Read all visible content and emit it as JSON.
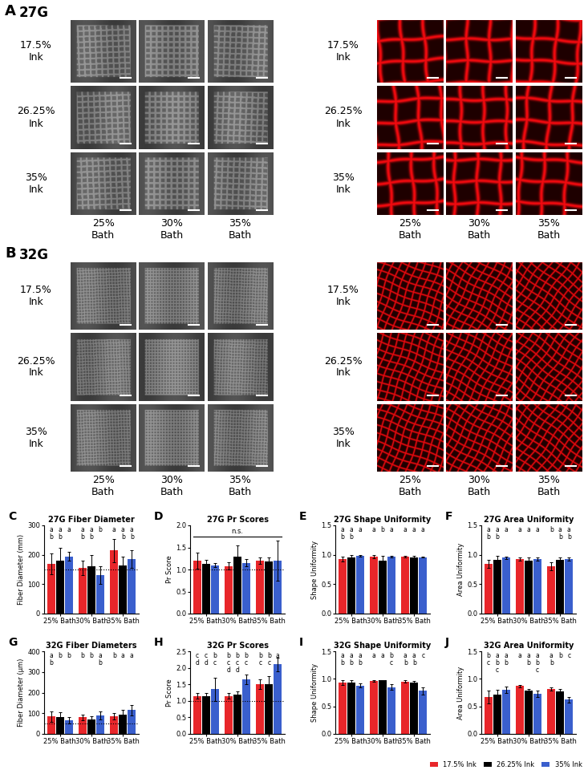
{
  "image_panels": [
    {
      "label": "A",
      "needle": "27G",
      "rows": [
        "17.5%\nInk",
        "26.25%\nInk",
        "35%\nInk"
      ],
      "columns": [
        "25%\nBath",
        "30%\nBath",
        "35%\nBath"
      ]
    },
    {
      "label": "B",
      "needle": "32G",
      "rows": [
        "17.5%\nInk",
        "26.25%\nInk",
        "35%\nInk"
      ],
      "columns": [
        "25%\nBath",
        "30%\nBath",
        "35%\nBath"
      ]
    }
  ],
  "chart_data": [
    {
      "type": "bar",
      "panel": "C",
      "title": "27G Fiber Diameter",
      "y_label": "Fiber Diameter (mm)",
      "categories": [
        "25% Bath",
        "30% Bath",
        "35% Bath"
      ],
      "ylim": [
        0,
        300
      ],
      "yticks": [
        0,
        100,
        200,
        300
      ],
      "reference_line": 150,
      "series": [
        {
          "name": "17.5% Ink",
          "color": "#e8262a",
          "values": [
            170,
            155,
            215
          ],
          "errors": [
            35,
            25,
            40
          ],
          "letters": [
            "a\nb",
            "a\nb",
            "a"
          ]
        },
        {
          "name": "26.25% Ink",
          "color": "#000000",
          "values": [
            180,
            160,
            165
          ],
          "errors": [
            45,
            40,
            30
          ],
          "letters": [
            "a\nb",
            "a\nb",
            "a\nb"
          ]
        },
        {
          "name": "35% Ink",
          "color": "#3a5fcd",
          "values": [
            195,
            130,
            185
          ],
          "errors": [
            15,
            30,
            30
          ],
          "letters": [
            "a",
            "b",
            "a\nb"
          ]
        }
      ]
    },
    {
      "type": "bar",
      "panel": "D",
      "title": "27G Pr Scores",
      "y_label": "Pr Score",
      "categories": [
        "25% Bath",
        "30% Bath",
        "35% Bath"
      ],
      "ylim": [
        0,
        2.0
      ],
      "yticks": [
        {
          "value": 0,
          "label": "0.0"
        },
        0.5,
        {
          "value": 1,
          "label": "1.0"
        },
        1.5,
        {
          "value": 2,
          "label": "2.0"
        }
      ],
      "reference_line": 1.0,
      "significance": "n.s.",
      "series": [
        {
          "name": "17.5% Ink",
          "color": "#e8262a",
          "values": [
            1.2,
            1.08,
            1.2
          ],
          "errors": [
            0.18,
            0.08,
            0.08
          ]
        },
        {
          "name": "26.25% Ink",
          "color": "#000000",
          "values": [
            1.12,
            1.3,
            1.18
          ],
          "errors": [
            0.1,
            0.25,
            0.1
          ]
        },
        {
          "name": "35% Ink",
          "color": "#3a5fcd",
          "values": [
            1.1,
            1.15,
            1.2
          ],
          "errors": [
            0.05,
            0.08,
            0.45
          ]
        }
      ]
    },
    {
      "type": "bar",
      "panel": "E",
      "title": "27G Shape Uniformity",
      "y_label": "Shape Uniformity",
      "categories": [
        "25% Bath",
        "30% Bath",
        "35% Bath"
      ],
      "ylim": [
        0,
        1.5
      ],
      "yticks": [
        {
          "value": 0,
          "label": "0.0"
        },
        0.5,
        {
          "value": 1,
          "label": "1.0"
        },
        1.5
      ],
      "series": [
        {
          "name": "17.5% Ink",
          "color": "#e8262a",
          "values": [
            0.93,
            0.97,
            0.97
          ],
          "errors": [
            0.04,
            0.03,
            0.01
          ],
          "letters": [
            "a\nb",
            "a",
            "a"
          ]
        },
        {
          "name": "26.25% Ink",
          "color": "#000000",
          "values": [
            0.95,
            0.9,
            0.96
          ],
          "errors": [
            0.04,
            0.08,
            0.02
          ],
          "letters": [
            "a\nb",
            "b",
            "a"
          ]
        },
        {
          "name": "35% Ink",
          "color": "#3a5fcd",
          "values": [
            0.98,
            0.97,
            0.96
          ],
          "errors": [
            0.01,
            0.01,
            0.01
          ],
          "letters": [
            "a",
            "a",
            "a"
          ]
        }
      ]
    },
    {
      "type": "bar",
      "panel": "F",
      "title": "27G Area Uniformity",
      "y_label": "Area Uniformity",
      "categories": [
        "25% Bath",
        "30% Bath",
        "35% Bath"
      ],
      "ylim": [
        0,
        1.5
      ],
      "yticks": [
        {
          "value": 0,
          "label": "0.0"
        },
        0.5,
        {
          "value": 1,
          "label": "1.0"
        },
        1.5
      ],
      "series": [
        {
          "name": "17.5% Ink",
          "color": "#e8262a",
          "values": [
            0.85,
            0.93,
            0.8
          ],
          "errors": [
            0.07,
            0.03,
            0.07
          ],
          "letters": [
            "a\nb",
            "a",
            "b"
          ]
        },
        {
          "name": "26.25% Ink",
          "color": "#000000",
          "values": [
            0.92,
            0.9,
            0.92
          ],
          "errors": [
            0.06,
            0.05,
            0.03
          ],
          "letters": [
            "a\nb",
            "a",
            "a\nb"
          ]
        },
        {
          "name": "35% Ink",
          "color": "#3a5fcd",
          "values": [
            0.95,
            0.93,
            0.93
          ],
          "errors": [
            0.02,
            0.03,
            0.03
          ],
          "letters": [
            "a",
            "a",
            "a\nb"
          ]
        }
      ]
    },
    {
      "type": "bar",
      "panel": "G",
      "title": "32G Fiber Diameters",
      "y_label": "Fiber Diameter (μm)",
      "categories": [
        "25% Bath",
        "30% Bath",
        "35% Bath"
      ],
      "ylim": [
        0,
        400
      ],
      "yticks": [
        0,
        100,
        200,
        300,
        400
      ],
      "reference_line": 50,
      "series": [
        {
          "name": "17.5% Ink",
          "color": "#e8262a",
          "values": [
            85,
            80,
            85
          ],
          "errors": [
            25,
            15,
            15
          ],
          "letters": [
            "a\nb",
            "b",
            "b"
          ]
        },
        {
          "name": "26.25% Ink",
          "color": "#000000",
          "values": [
            80,
            70,
            95
          ],
          "errors": [
            25,
            15,
            20
          ],
          "letters": [
            "b",
            "b",
            "a"
          ]
        },
        {
          "name": "35% Ink",
          "color": "#3a5fcd",
          "values": [
            65,
            90,
            115
          ],
          "errors": [
            15,
            20,
            25
          ],
          "letters": [
            "b",
            "a\nb",
            "a"
          ]
        }
      ]
    },
    {
      "type": "bar",
      "panel": "H",
      "title": "32G Pr Scores",
      "y_label": "Pr Score",
      "categories": [
        "25% Bath",
        "30% Bath",
        "35% Bath"
      ],
      "ylim": [
        0,
        2.5
      ],
      "yticks": [
        {
          "value": 0,
          "label": "0.0"
        },
        0.5,
        {
          "value": 1,
          "label": "1.0"
        },
        1.5,
        {
          "value": 2,
          "label": "2.0"
        },
        2.5
      ],
      "reference_line": 1.0,
      "series": [
        {
          "name": "17.5% Ink",
          "color": "#e8262a",
          "values": [
            1.15,
            1.15,
            1.5
          ],
          "errors": [
            0.08,
            0.08,
            0.15
          ],
          "letters": [
            "c\nd",
            "b\nc\nd",
            "b\nc"
          ]
        },
        {
          "name": "26.25% Ink",
          "color": "#000000",
          "values": [
            1.15,
            1.2,
            1.5
          ],
          "errors": [
            0.08,
            0.08,
            0.25
          ],
          "letters": [
            "c\nd",
            "b\nc\nd",
            "b\nc"
          ]
        },
        {
          "name": "35% Ink",
          "color": "#3a5fcd",
          "values": [
            1.35,
            1.65,
            2.1
          ],
          "errors": [
            0.35,
            0.15,
            0.2
          ],
          "letters": [
            "b\nc",
            "b\nc",
            "a"
          ]
        }
      ]
    },
    {
      "type": "bar",
      "panel": "I",
      "title": "32G Shape Uniformity",
      "y_label": "Shape Uniformity",
      "categories": [
        "25% Bath",
        "30% Bath",
        "35% Bath"
      ],
      "ylim": [
        0,
        1.5
      ],
      "yticks": [
        {
          "value": 0,
          "label": "0.0"
        },
        0.5,
        {
          "value": 1,
          "label": "1.0"
        },
        1.5
      ],
      "series": [
        {
          "name": "17.5% Ink",
          "color": "#e8262a",
          "values": [
            0.93,
            0.96,
            0.95
          ],
          "errors": [
            0.04,
            0.01,
            0.02
          ],
          "letters": [
            "a\nb",
            "a",
            "a\nb"
          ]
        },
        {
          "name": "26.25% Ink",
          "color": "#000000",
          "values": [
            0.93,
            0.97,
            0.93
          ],
          "errors": [
            0.04,
            0.01,
            0.03
          ],
          "letters": [
            "a\nb",
            "a",
            "a\nb"
          ]
        },
        {
          "name": "35% Ink",
          "color": "#3a5fcd",
          "values": [
            0.88,
            0.85,
            0.78
          ],
          "errors": [
            0.04,
            0.05,
            0.06
          ],
          "letters": [
            "a\nb",
            "b\nc",
            "c"
          ]
        }
      ]
    },
    {
      "type": "bar",
      "panel": "J",
      "title": "32G Area Uniformity",
      "y_label": "Area Uniformity",
      "categories": [
        "25% Bath",
        "30% Bath",
        "35% Bath"
      ],
      "ylim": [
        0,
        1.5
      ],
      "yticks": [
        {
          "value": 0,
          "label": "0.0"
        },
        0.5,
        {
          "value": 1,
          "label": "1.0"
        },
        1.5
      ],
      "legend": "lower right",
      "series": [
        {
          "name": "17.5% Ink",
          "color": "#e8262a",
          "values": [
            0.67,
            0.87,
            0.82
          ],
          "errors": [
            0.12,
            0.02,
            0.03
          ],
          "letters": [
            "b\nc",
            "a",
            "a\nb"
          ]
        },
        {
          "name": "26.25% Ink",
          "color": "#000000",
          "values": [
            0.72,
            0.78,
            0.77
          ],
          "errors": [
            0.08,
            0.03,
            0.04
          ],
          "letters": [
            "a\nb\nc",
            "a\nb",
            "b"
          ]
        },
        {
          "name": "35% Ink",
          "color": "#3a5fcd",
          "values": [
            0.8,
            0.73,
            0.62
          ],
          "errors": [
            0.06,
            0.06,
            0.05
          ],
          "letters": [
            "a\nb",
            "a\nb\nc",
            "c"
          ]
        }
      ]
    }
  ]
}
